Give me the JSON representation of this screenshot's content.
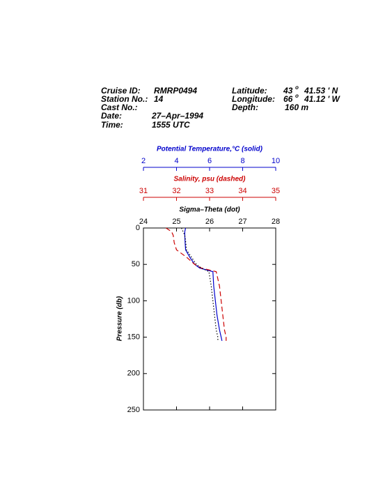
{
  "header": {
    "cruise_id_label": "Cruise ID:",
    "cruise_id": "RMRP0494",
    "station_label": "Station No.:",
    "station": "14",
    "cast_label": "Cast No.:",
    "date_label": "Date:",
    "date": "27–Apr–1994",
    "time_label": "Time:",
    "time": "1555 UTC",
    "latitude_label": "Latitude:",
    "latitude_deg": "43",
    "latitude_rest": "41.53 '  N",
    "longitude_label": "Longitude:",
    "longitude_deg": "66",
    "longitude_rest": "41.12 '  W",
    "degree_mark": "o",
    "depth_label": "Depth:",
    "depth": "160 m"
  },
  "chart_data": {
    "type": "profile",
    "ylabel": "Pressure (db)",
    "ylim": [
      0,
      250
    ],
    "yticks": [
      0,
      50,
      100,
      150,
      200,
      250
    ],
    "axes": [
      {
        "title": "Potential Temperature,°C (solid)",
        "lim": [
          2,
          10
        ],
        "ticks": [
          2,
          4,
          6,
          8,
          10
        ],
        "color": "#0000cc"
      },
      {
        "title": "Salinity, psu  (dashed)",
        "lim": [
          31,
          35
        ],
        "ticks": [
          31,
          32,
          33,
          34,
          35
        ],
        "color": "#cc0000"
      },
      {
        "title": "Sigma–Theta (dot)",
        "lim": [
          24,
          28
        ],
        "ticks": [
          24,
          25,
          26,
          27,
          28
        ],
        "color": "#000000"
      }
    ],
    "pressure": [
      0,
      5,
      10,
      20,
      30,
      40,
      50,
      55,
      60,
      80,
      100,
      120,
      140,
      150,
      155
    ],
    "series": [
      {
        "axis": 0,
        "color": "#0000cc",
        "dash": "solid",
        "values": [
          4.55,
          4.5,
          4.5,
          4.52,
          4.55,
          4.8,
          5.1,
          5.4,
          6.2,
          6.25,
          6.35,
          6.45,
          6.6,
          6.7,
          6.75
        ]
      },
      {
        "axis": 1,
        "color": "#cc0000",
        "dash": "dashed",
        "values": [
          31.68,
          31.85,
          31.9,
          31.93,
          32.0,
          32.3,
          32.55,
          32.75,
          33.2,
          33.3,
          33.35,
          33.4,
          33.45,
          33.5,
          33.5
        ]
      },
      {
        "axis": 2,
        "color": "#000000",
        "dash": "dotted",
        "values": [
          25.15,
          25.2,
          25.25,
          25.28,
          25.3,
          25.45,
          25.6,
          25.75,
          25.98,
          26.05,
          26.1,
          26.15,
          26.2,
          26.25,
          26.25
        ]
      }
    ]
  }
}
